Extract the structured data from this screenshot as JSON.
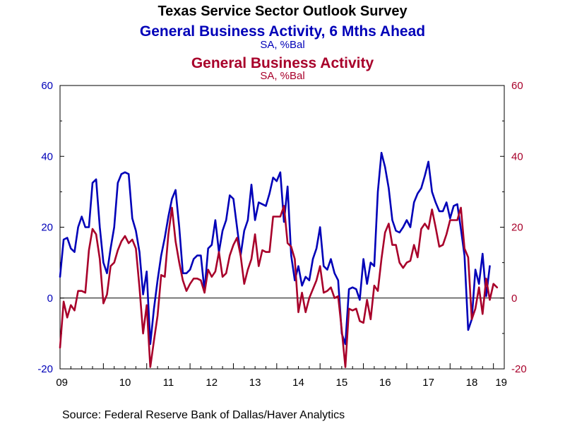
{
  "chart_data": {
    "type": "line",
    "title": "Texas Service Sector Outlook Survey",
    "source": "Source:  Federal Reserve Bank of Dallas/Haver Analytics",
    "x_tick_labels": [
      "09",
      "10",
      "11",
      "12",
      "13",
      "14",
      "15",
      "16",
      "17",
      "18",
      "19"
    ],
    "y_tick_labels": [
      "-20",
      "0",
      "20",
      "40",
      "60"
    ],
    "ylim": [
      -20,
      60
    ],
    "xlim": [
      2009.0,
      2019.25
    ],
    "grid": false,
    "series": [
      {
        "name": "General Business Activity, 6 Mths Ahead",
        "unit": "SA, %Bal",
        "color": "#0000b8",
        "axis": "left",
        "start": 2009.0,
        "step": 0.0833333,
        "values": [
          6,
          16.5,
          17,
          14,
          13,
          20,
          23,
          20,
          20,
          32.5,
          33.5,
          20,
          10,
          7,
          14,
          20,
          32.5,
          35,
          35.5,
          35,
          22.5,
          19,
          13,
          1,
          7.5,
          -13,
          -3,
          5,
          12,
          17,
          23,
          28,
          30.5,
          20,
          7,
          7,
          8,
          11,
          12,
          12,
          2,
          14,
          15,
          22,
          13,
          19,
          22,
          29,
          28,
          20,
          12,
          19,
          22,
          32,
          22,
          27,
          26.5,
          26,
          29.5,
          34,
          33,
          35.5,
          21.5,
          31.5,
          12,
          5,
          9,
          3.5,
          6,
          5,
          11,
          14,
          20,
          9,
          8,
          11,
          7,
          5,
          -10,
          -13,
          2.5,
          3,
          2.5,
          -0.5,
          11,
          4,
          10,
          9,
          30,
          41,
          37,
          31,
          22,
          19,
          18.5,
          20,
          22,
          20,
          27,
          29.5,
          31,
          34.5,
          38.5,
          30,
          27,
          24.5,
          24.5,
          27,
          22.5,
          26,
          26.5,
          19.5,
          12,
          -9,
          -6,
          8,
          4,
          12.5,
          0.5,
          9
        ]
      },
      {
        "name": "General Business Activity",
        "unit": "SA, %Bal",
        "color": "#a8002a",
        "axis": "right",
        "start": 2009.0,
        "step": 0.0833333,
        "values": [
          -14,
          -1,
          -5.5,
          -2,
          -3.5,
          2,
          2,
          1.5,
          13.5,
          19.5,
          18,
          11,
          -1.5,
          1,
          9,
          10,
          13.5,
          16,
          17.5,
          15.5,
          16.5,
          14,
          3,
          -10,
          -2,
          -19.5,
          -12,
          -5,
          6.5,
          6,
          18,
          25.5,
          16,
          10,
          5,
          2,
          4,
          5.5,
          5.5,
          5,
          1.5,
          8,
          6,
          7.5,
          13,
          6,
          7,
          12,
          15,
          17,
          12,
          4,
          8,
          11,
          18,
          9,
          13.5,
          13,
          13,
          23,
          23,
          23,
          26,
          15.5,
          14.5,
          11,
          -4,
          1.5,
          -4,
          0,
          2.5,
          5,
          9,
          1.5,
          2,
          3,
          0,
          0.5,
          -9,
          -19.5,
          -3,
          -3.5,
          -3,
          -6.5,
          -7,
          -0.5,
          -6,
          3.5,
          2,
          11,
          18.5,
          21,
          15,
          15,
          10,
          8.5,
          10,
          10.5,
          15,
          11.5,
          19.5,
          21,
          19.5,
          25,
          20,
          14.5,
          15,
          18,
          22,
          22,
          22,
          25.5,
          14,
          11.5,
          -6,
          -3,
          3,
          -4.5,
          5.5,
          -0.5,
          4,
          3
        ]
      }
    ]
  }
}
